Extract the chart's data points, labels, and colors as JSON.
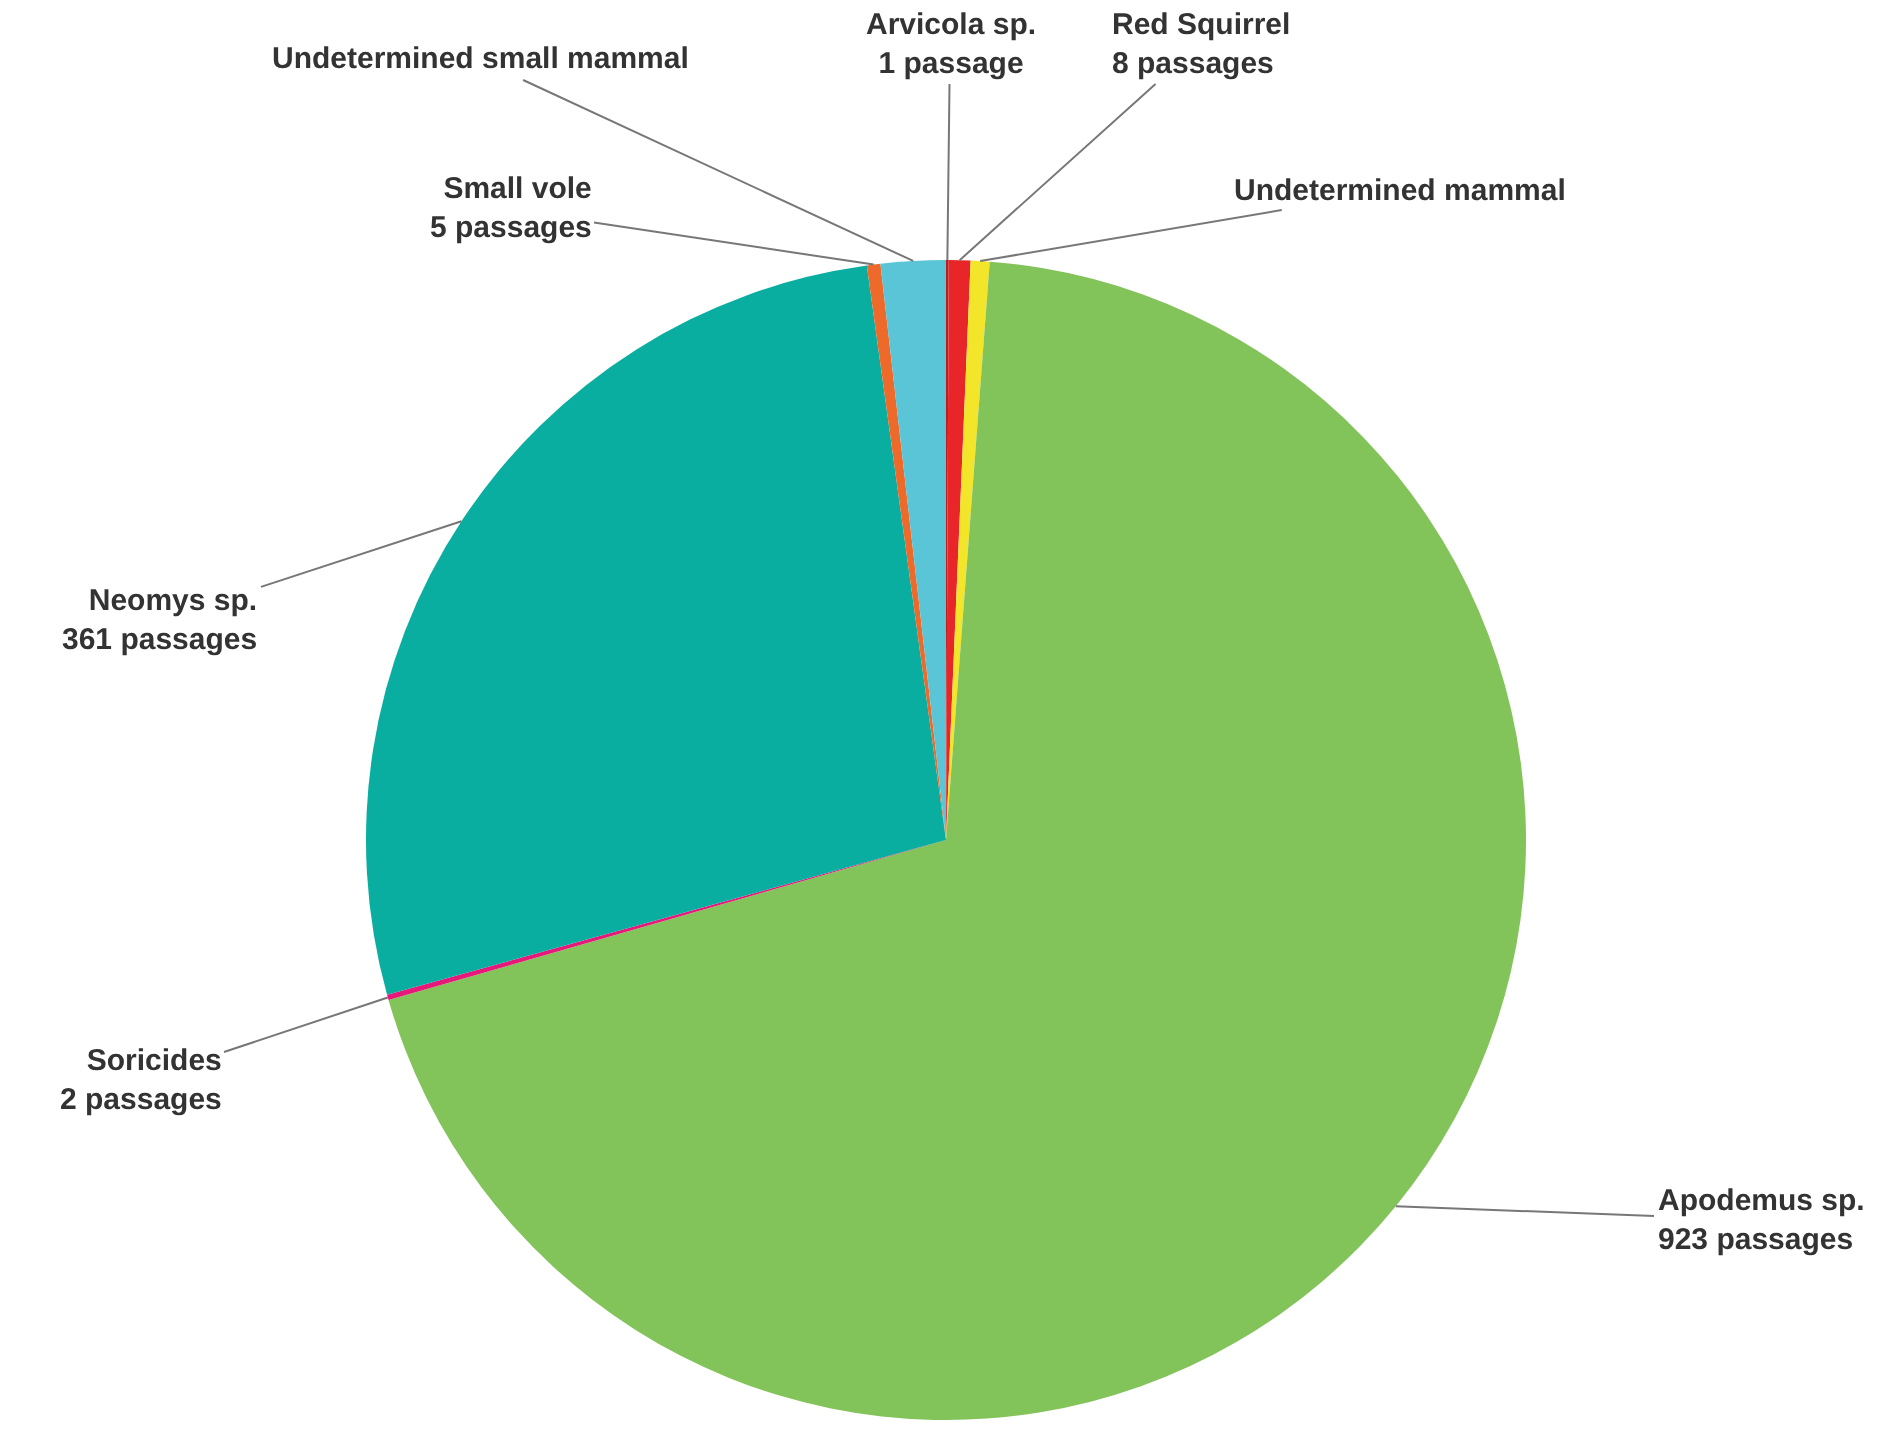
{
  "chart_data": {
    "type": "pie",
    "categories": [
      "Arvicola sp.",
      "Red Squirrel",
      "Undetermined mammal",
      "Apodemus sp.",
      "Soricides",
      "Neomys sp.",
      "Small vole",
      "Undetermined small mammal"
    ],
    "values": [
      1,
      8,
      7,
      923,
      2,
      361,
      5,
      24
    ],
    "value_labels": [
      "1 passage",
      "8 passages",
      null,
      "923 passages",
      "2 passages",
      "361 passages",
      "5 passages",
      null
    ],
    "colors": [
      "#b81e22",
      "#e8262a",
      "#f2e52a",
      "#82c35a",
      "#e6197a",
      "#0aaea0",
      "#ee6a2a",
      "#5bc5d8"
    ]
  }
}
